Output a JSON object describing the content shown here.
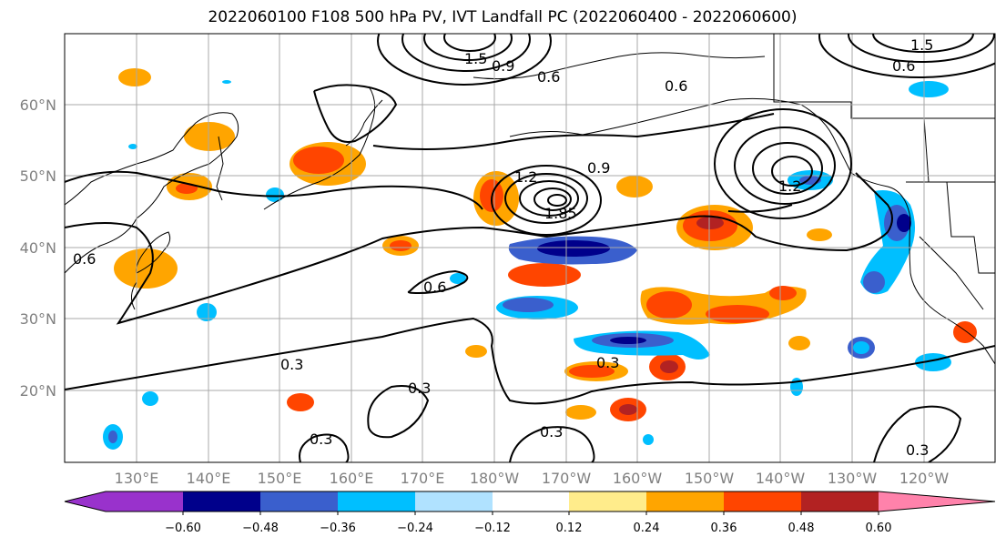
{
  "title": "2022060100 F108 500 hPa PV, IVT Landfall PC (2022060400 - 2022060600)",
  "lat_labels": [
    "60°N",
    "50°N",
    "40°N",
    "30°N",
    "20°N"
  ],
  "lon_labels": [
    "130°E",
    "140°E",
    "150°E",
    "160°E",
    "170°E",
    "180°W",
    "170°W",
    "160°W",
    "150°W",
    "140°W",
    "130°W",
    "120°W"
  ],
  "contour_labels": [
    "0.3",
    "0.3",
    "0.3",
    "0.3",
    "0.3",
    "0.3",
    "0.6",
    "0.6",
    "0.6",
    "0.6",
    "0.6",
    "0.9",
    "1.2",
    "1.5",
    "1.85",
    "0.9",
    "1.2",
    "1.5"
  ],
  "colorbar": {
    "ticks": [
      "−0.60",
      "−0.48",
      "−0.36",
      "−0.24",
      "−0.12",
      "0.12",
      "0.24",
      "0.36",
      "0.48",
      "0.60"
    ],
    "colors": [
      "#9932cc",
      "#00008b",
      "#3a5fcd",
      "#00bfff",
      "#b0e2ff",
      "#ffffff",
      "#ffec8b",
      "#ffa500",
      "#ff4500",
      "#b22222",
      "#ff82ab"
    ]
  }
}
